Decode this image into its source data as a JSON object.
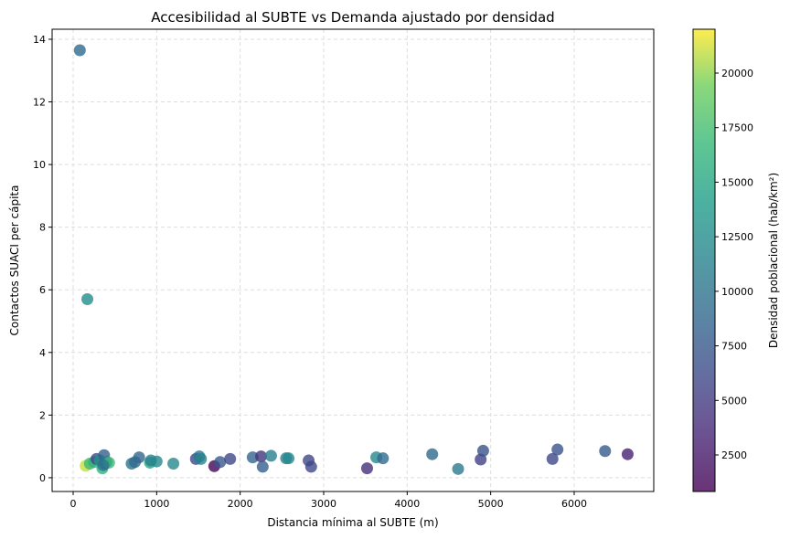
{
  "chart_data": {
    "type": "scatter",
    "title": "Accesibilidad al SUBTE vs Demanda ajustado por densidad",
    "xlabel": "Distancia mínima al SUBTE (m)",
    "ylabel": "Contactos SUACI per cápita",
    "xlim": [
      -252,
      6953
    ],
    "ylim": [
      -0.44,
      14.32
    ],
    "xticks": [
      0,
      1000,
      2000,
      3000,
      4000,
      5000,
      6000
    ],
    "xtick_labels": [
      "0",
      "1000",
      "2000",
      "3000",
      "4000",
      "5000",
      "6000"
    ],
    "yticks": [
      0,
      2,
      4,
      6,
      8,
      10,
      12,
      14
    ],
    "ytick_labels": [
      "0",
      "2",
      "4",
      "6",
      "8",
      "10",
      "12",
      "14"
    ],
    "grid": true,
    "colorbar": {
      "label": "Densidad poblacional (hab/km²)",
      "colormap": "viridis",
      "range": [
        826,
        22009
      ],
      "ticks": [
        2500,
        5000,
        7500,
        10000,
        12500,
        15000,
        17500,
        20000
      ],
      "tick_labels": [
        "2500",
        "5000",
        "7500",
        "10000",
        "12500",
        "15000",
        "17500",
        "20000"
      ]
    },
    "points": [
      {
        "x": 80,
        "y": 13.65,
        "c": 9000
      },
      {
        "x": 170,
        "y": 5.7,
        "c": 12500
      },
      {
        "x": 150,
        "y": 0.38,
        "c": 21000
      },
      {
        "x": 200,
        "y": 0.45,
        "c": 17000
      },
      {
        "x": 250,
        "y": 0.5,
        "c": 16000
      },
      {
        "x": 280,
        "y": 0.6,
        "c": 6000
      },
      {
        "x": 320,
        "y": 0.55,
        "c": 13000
      },
      {
        "x": 350,
        "y": 0.3,
        "c": 16000
      },
      {
        "x": 370,
        "y": 0.72,
        "c": 8000
      },
      {
        "x": 380,
        "y": 0.45,
        "c": 7000
      },
      {
        "x": 400,
        "y": 0.5,
        "c": 11000
      },
      {
        "x": 430,
        "y": 0.48,
        "c": 17000
      },
      {
        "x": 360,
        "y": 0.4,
        "c": 10000
      },
      {
        "x": 700,
        "y": 0.45,
        "c": 10000
      },
      {
        "x": 740,
        "y": 0.5,
        "c": 9000
      },
      {
        "x": 790,
        "y": 0.65,
        "c": 8500
      },
      {
        "x": 920,
        "y": 0.48,
        "c": 15000
      },
      {
        "x": 930,
        "y": 0.55,
        "c": 11000
      },
      {
        "x": 1000,
        "y": 0.52,
        "c": 12000
      },
      {
        "x": 1200,
        "y": 0.45,
        "c": 12000
      },
      {
        "x": 1470,
        "y": 0.6,
        "c": 6000
      },
      {
        "x": 1510,
        "y": 0.68,
        "c": 10000
      },
      {
        "x": 1530,
        "y": 0.6,
        "c": 11500
      },
      {
        "x": 1690,
        "y": 0.37,
        "c": 1000
      },
      {
        "x": 1760,
        "y": 0.5,
        "c": 7500
      },
      {
        "x": 1880,
        "y": 0.6,
        "c": 6000
      },
      {
        "x": 2150,
        "y": 0.65,
        "c": 8500
      },
      {
        "x": 2250,
        "y": 0.68,
        "c": 4500
      },
      {
        "x": 2270,
        "y": 0.35,
        "c": 8000
      },
      {
        "x": 2370,
        "y": 0.7,
        "c": 11000
      },
      {
        "x": 2550,
        "y": 0.62,
        "c": 11000
      },
      {
        "x": 2580,
        "y": 0.62,
        "c": 12000
      },
      {
        "x": 2820,
        "y": 0.55,
        "c": 6000
      },
      {
        "x": 2850,
        "y": 0.35,
        "c": 6000
      },
      {
        "x": 3520,
        "y": 0.3,
        "c": 4000
      },
      {
        "x": 3630,
        "y": 0.65,
        "c": 12000
      },
      {
        "x": 3710,
        "y": 0.62,
        "c": 9000
      },
      {
        "x": 4300,
        "y": 0.75,
        "c": 9000
      },
      {
        "x": 4610,
        "y": 0.28,
        "c": 10500
      },
      {
        "x": 4880,
        "y": 0.58,
        "c": 5500
      },
      {
        "x": 4910,
        "y": 0.86,
        "c": 7000
      },
      {
        "x": 5740,
        "y": 0.6,
        "c": 6000
      },
      {
        "x": 5800,
        "y": 0.9,
        "c": 7000
      },
      {
        "x": 6370,
        "y": 0.85,
        "c": 7500
      },
      {
        "x": 6640,
        "y": 0.75,
        "c": 3000
      }
    ]
  }
}
